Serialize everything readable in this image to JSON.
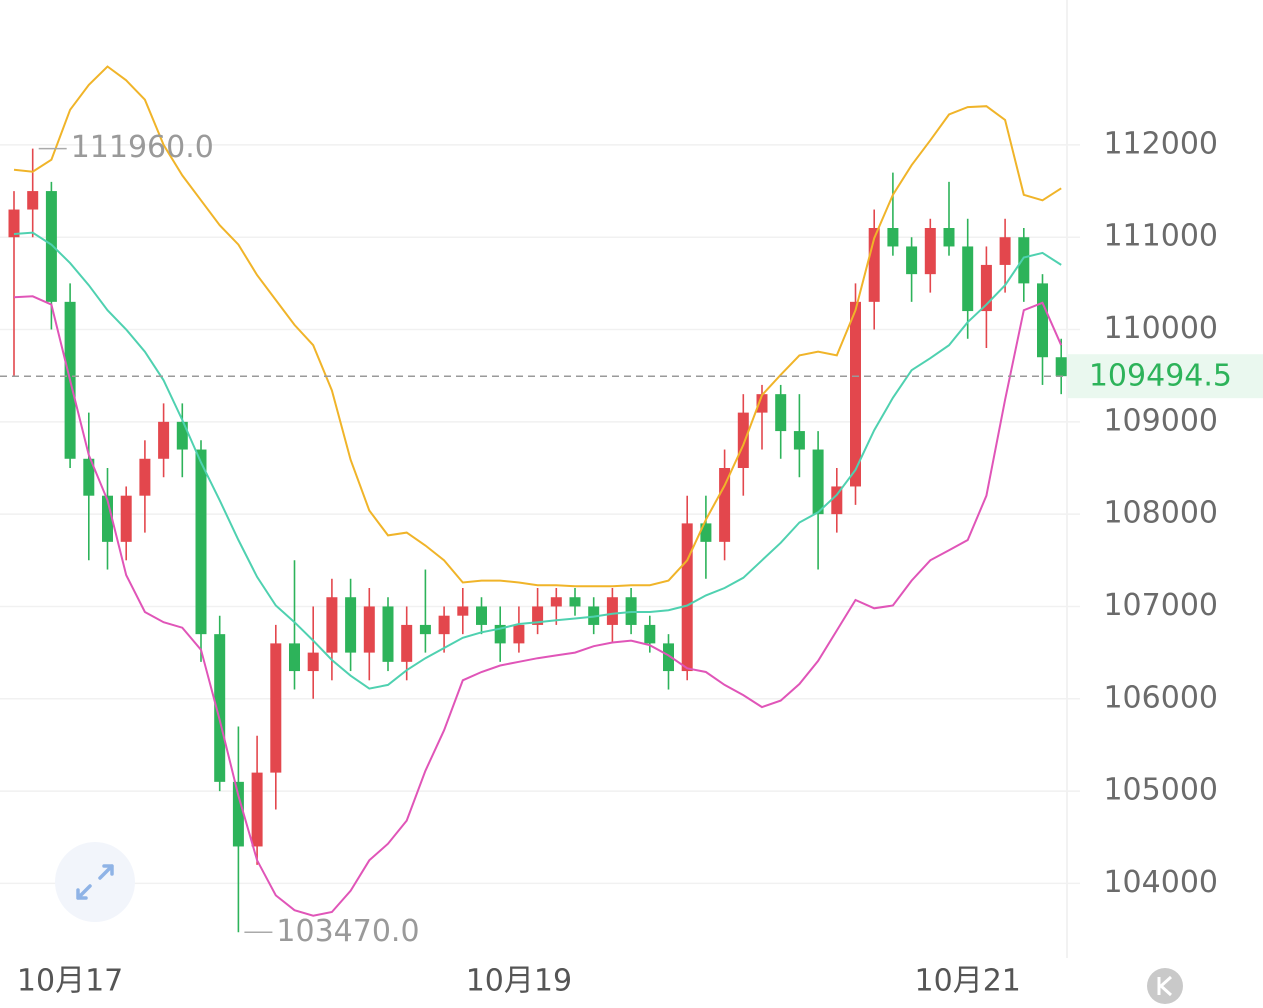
{
  "chart_data": {
    "type": "candlestick",
    "categories": [
      null,
      null,
      null,
      "10月17",
      null,
      null,
      null,
      null,
      null,
      null,
      null,
      null,
      null,
      null,
      null,
      null,
      null,
      null,
      null,
      null,
      null,
      null,
      null,
      null,
      null,
      null,
      null,
      "10月19",
      null,
      null,
      null,
      null,
      null,
      null,
      null,
      null,
      null,
      null,
      null,
      null,
      null,
      null,
      null,
      null,
      null,
      null,
      null,
      null,
      null,
      null,
      null,
      "10月21",
      null,
      null,
      null,
      null,
      null
    ],
    "open": [
      111000,
      111300,
      111500,
      110300,
      108600,
      108200,
      107700,
      108200,
      108600,
      109000,
      108700,
      106700,
      105100,
      104400,
      105200,
      106600,
      106300,
      106500,
      107100,
      106500,
      107000,
      106400,
      106800,
      106700,
      106900,
      107000,
      106800,
      106600,
      106800,
      107000,
      107100,
      107000,
      106800,
      107100,
      106800,
      106600,
      106300,
      107900,
      107700,
      108500,
      109100,
      109300,
      108900,
      108700,
      108000,
      108300,
      110300,
      111100,
      110900,
      110600,
      111100,
      110900,
      110200,
      110700,
      111000,
      110500,
      109700
    ],
    "high": [
      111500,
      111960,
      111600,
      110500,
      109100,
      108500,
      108300,
      108800,
      109200,
      109200,
      108800,
      106900,
      105700,
      105600,
      106800,
      107500,
      107000,
      107300,
      107300,
      107200,
      107100,
      107000,
      107400,
      107000,
      107200,
      107100,
      107000,
      107000,
      107200,
      107200,
      107200,
      107100,
      107200,
      107200,
      106900,
      106700,
      108200,
      108200,
      108700,
      109300,
      109400,
      109400,
      109300,
      108900,
      108500,
      110500,
      111300,
      111700,
      111000,
      111200,
      111600,
      111200,
      110900,
      111200,
      111100,
      110600,
      109900
    ],
    "low": [
      109500,
      111000,
      110000,
      108500,
      107500,
      107400,
      107500,
      107800,
      108400,
      108400,
      106400,
      105000,
      103470,
      104200,
      104800,
      106100,
      106000,
      106200,
      106300,
      106200,
      106300,
      106200,
      106500,
      106500,
      106700,
      106700,
      106400,
      106500,
      106700,
      106800,
      106900,
      106700,
      106600,
      106700,
      106500,
      106100,
      106200,
      107300,
      107500,
      108200,
      108700,
      108600,
      108400,
      107400,
      107800,
      108100,
      110000,
      110800,
      110300,
      110400,
      110800,
      109900,
      109800,
      110400,
      110300,
      109400,
      109300
    ],
    "close": [
      111300,
      111500,
      110300,
      108600,
      108200,
      107700,
      108200,
      108600,
      109000,
      108700,
      106700,
      105100,
      104400,
      105200,
      106600,
      106300,
      106500,
      107100,
      106500,
      107000,
      106400,
      106800,
      106700,
      106900,
      107000,
      106800,
      106600,
      106800,
      107000,
      107100,
      107000,
      106800,
      107100,
      106800,
      106600,
      106300,
      107900,
      107700,
      108500,
      109100,
      109300,
      108900,
      108700,
      108000,
      108300,
      110300,
      111100,
      110900,
      110600,
      111100,
      110900,
      110200,
      110700,
      111000,
      110500,
      109700,
      109494.5
    ],
    "up_color": "#e3474d",
    "down_color": "#2db35a",
    "bands": {
      "upper": {
        "color": "#f0b429",
        "values": [
          111730,
          111710,
          111840,
          112380,
          112650,
          112850,
          112700,
          112490,
          112000,
          111670,
          111400,
          111130,
          110920,
          110590,
          110320,
          110050,
          109830,
          109340,
          108590,
          108040,
          107770,
          107800,
          107660,
          107500,
          107260,
          107280,
          107280,
          107260,
          107230,
          107230,
          107220,
          107220,
          107220,
          107230,
          107230,
          107280,
          107500,
          107940,
          108310,
          108750,
          109290,
          109510,
          109720,
          109760,
          109720,
          110210,
          110990,
          111460,
          111780,
          112050,
          112330,
          112410,
          112420,
          112270,
          111460,
          111400,
          111530
        ]
      },
      "middle": {
        "color": "#4fd1b0",
        "values": [
          111035,
          111050,
          110920,
          110720,
          110480,
          110210,
          110000,
          109760,
          109450,
          109020,
          108560,
          108150,
          107720,
          107320,
          107010,
          106830,
          106630,
          106420,
          106250,
          106110,
          106150,
          106310,
          106440,
          106550,
          106660,
          106720,
          106760,
          106810,
          106830,
          106850,
          106870,
          106890,
          106920,
          106940,
          106940,
          106960,
          107010,
          107120,
          107200,
          107310,
          107500,
          107690,
          107910,
          108020,
          108210,
          108480,
          108910,
          109260,
          109560,
          109690,
          109830,
          110080,
          110270,
          110480,
          110780,
          110830,
          110700
        ]
      },
      "lower": {
        "color": "#e055b8",
        "values": [
          110350,
          110360,
          110270,
          109450,
          108640,
          108150,
          107340,
          106940,
          106830,
          106770,
          106530,
          105770,
          104950,
          104250,
          103870,
          103710,
          103650,
          103690,
          103920,
          104250,
          104430,
          104680,
          105220,
          105660,
          106200,
          106290,
          106360,
          106400,
          106440,
          106470,
          106500,
          106570,
          106610,
          106630,
          106580,
          106470,
          106330,
          106290,
          106150,
          106040,
          105910,
          105980,
          106160,
          106410,
          106740,
          107070,
          106980,
          107010,
          107280,
          107500,
          107610,
          107720,
          108200,
          109240,
          110210,
          110290,
          109830
        ]
      }
    },
    "annotations": [
      {
        "value": 111960,
        "label": "111960.0"
      },
      {
        "value": 103470,
        "label": "103470.0"
      }
    ],
    "last_price": 109494.5,
    "ylim": [
      103170,
      113570
    ],
    "yticks": [
      104000,
      105000,
      106000,
      107000,
      108000,
      109000,
      110000,
      111000,
      112000
    ],
    "grid": true
  }
}
